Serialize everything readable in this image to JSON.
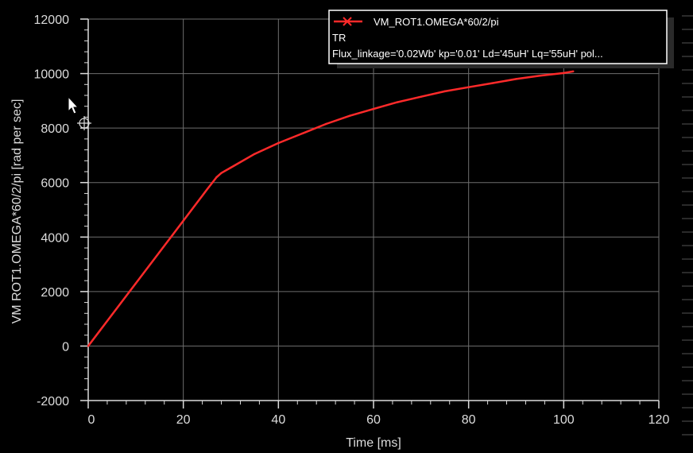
{
  "chart_data": {
    "type": "line",
    "xlabel": "Time [ms]",
    "ylabel": "VM  ROT1.OMEGA*60/2/pi [rad  per  sec]",
    "xlim": [
      0,
      120
    ],
    "ylim": [
      -2000,
      12000
    ],
    "x_ticks": [
      0,
      20,
      40,
      60,
      80,
      100,
      120
    ],
    "y_ticks": [
      -2000,
      0,
      2000,
      4000,
      6000,
      8000,
      10000,
      12000
    ],
    "x_tick_labels": [
      "0",
      "20",
      "40",
      "60",
      "80",
      "100",
      "120"
    ],
    "y_tick_labels": [
      "-2000",
      "0",
      "2000",
      "4000",
      "6000",
      "8000",
      "10000",
      "12000"
    ],
    "grid": true,
    "legend_position": "top-right",
    "series": [
      {
        "name": "VM_ROT1.OMEGA*60/2/pi",
        "color": "#ff2a2a",
        "marker": "x",
        "x": [
          0,
          5,
          10,
          15,
          20,
          25,
          27,
          28,
          30,
          35,
          40,
          45,
          50,
          55,
          60,
          65,
          70,
          75,
          80,
          85,
          90,
          95,
          100,
          102
        ],
        "y": [
          0,
          1150,
          2300,
          3450,
          4600,
          5750,
          6200,
          6350,
          6550,
          7050,
          7450,
          7800,
          8150,
          8450,
          8700,
          8950,
          9150,
          9350,
          9500,
          9650,
          9800,
          9920,
          10020,
          10080
        ]
      }
    ]
  },
  "legend": {
    "series_label": "VM_ROT1.OMEGA*60/2/pi",
    "line2": "TR",
    "line3": "Flux_linkage='0.02Wb' kp='0.01' Ld='45uH' Lq='55uH' pol..."
  },
  "colors": {
    "background": "#000000",
    "grid": "#6e6e6e",
    "axis": "#dcdcdc",
    "legend_border": "#ffffff"
  }
}
